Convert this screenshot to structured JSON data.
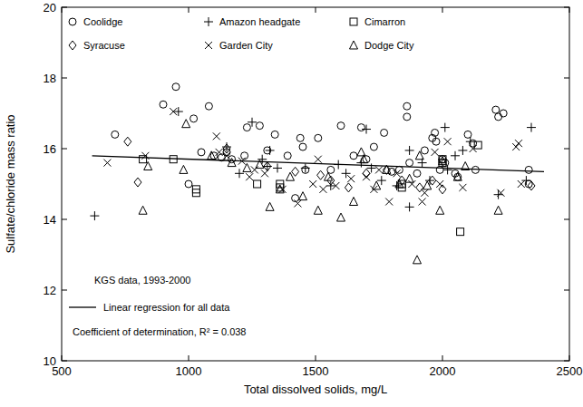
{
  "chart_data": {
    "type": "scatter",
    "x_label": "Total dissolved solids, mg/L",
    "y_label": "Sulfate/chloride mass ratio",
    "xlim": [
      500,
      2500
    ],
    "xticks": [
      500,
      1000,
      1500,
      2000,
      2500
    ],
    "ylim": [
      10,
      20
    ],
    "yticks": [
      10,
      12,
      14,
      16,
      18,
      20
    ],
    "grid": false,
    "legend": "top",
    "annotations": [
      "KGS data, 1993-2000",
      "Coefficient of determination, R² = 0.038"
    ],
    "series": [
      {
        "name": "Coolidge",
        "color": "#000000",
        "marker": "circle",
        "x": [
          710,
          900,
          950,
          1000,
          1020,
          1050,
          1080,
          1100,
          1130,
          1150,
          1170,
          1220,
          1230,
          1280,
          1310,
          1340,
          1390,
          1420,
          1440,
          1450,
          1460,
          1510,
          1560,
          1600,
          1650,
          1680,
          1700,
          1730,
          1770,
          1800,
          1830,
          1860,
          1860,
          1870,
          1900,
          1930,
          1960,
          1970,
          1975,
          1990,
          2000,
          2010,
          2060,
          2100,
          2120,
          2210,
          2220,
          2240,
          2340,
          2340,
          2130,
          2050
        ],
        "values": [
          16.4,
          17.25,
          17.75,
          15.0,
          16.85,
          15.9,
          17.2,
          15.8,
          15.75,
          15.9,
          15.7,
          15.8,
          16.6,
          16.65,
          15.95,
          16.4,
          15.8,
          14.6,
          16.3,
          16.05,
          15.4,
          16.3,
          15.4,
          16.65,
          15.8,
          16.6,
          15.7,
          16.05,
          16.45,
          15.35,
          15.4,
          16.9,
          17.2,
          15.6,
          15.3,
          15.95,
          16.3,
          16.45,
          16.2,
          15.4,
          15.7,
          15.6,
          15.2,
          16.4,
          16.15,
          17.1,
          16.9,
          17.0,
          15.4,
          15.0,
          15.4,
          15.3
        ]
      },
      {
        "name": "Amazon headgate",
        "color": "#000000",
        "marker": "plus",
        "x": [
          630,
          960,
          1150,
          1200,
          1250,
          1290,
          1310,
          1320,
          1350,
          1460,
          1560,
          1590,
          1620,
          1680,
          1700,
          1720,
          1760,
          1820,
          1870,
          1870,
          1920,
          1950,
          2010,
          2020,
          2050,
          2080,
          2110,
          2220,
          2350,
          2330
        ],
        "values": [
          14.1,
          17.05,
          16.05,
          15.3,
          16.75,
          15.7,
          15.5,
          15.95,
          15.45,
          15.45,
          14.95,
          15.55,
          15.3,
          15.6,
          16.55,
          15.45,
          15.1,
          14.95,
          15.95,
          14.35,
          15.6,
          15.1,
          16.6,
          15.4,
          15.8,
          15.95,
          16.2,
          14.7,
          16.6,
          15.1
        ]
      },
      {
        "name": "Cimarron",
        "color": "#000000",
        "marker": "square",
        "x": [
          820,
          940,
          1030,
          1030,
          1270,
          1360,
          1360,
          1840,
          1840,
          2000,
          2000,
          2070,
          2140
        ],
        "values": [
          15.7,
          15.7,
          14.85,
          14.75,
          15.0,
          15.0,
          14.9,
          15.0,
          14.9,
          15.7,
          15.6,
          13.65,
          16.1
        ]
      },
      {
        "name": "Syracuse",
        "color": "#000000",
        "marker": "diamond",
        "x": [
          760,
          800,
          1150,
          1310,
          1420,
          1520,
          1560,
          1630,
          1700,
          1780,
          1840,
          1910,
          1960,
          2000,
          2350
        ],
        "values": [
          16.2,
          15.05,
          16.0,
          15.5,
          15.35,
          15.25,
          15.1,
          14.9,
          15.3,
          15.4,
          15.1,
          14.9,
          15.1,
          14.85,
          14.95
        ]
      },
      {
        "name": "Garden City",
        "color": "#000000",
        "marker": "x",
        "x": [
          680,
          830,
          940,
          1110,
          1120,
          1150,
          1210,
          1240,
          1260,
          1300,
          1370,
          1430,
          1490,
          1510,
          1530,
          1580,
          1640,
          1700,
          1730,
          1750,
          1790,
          1820,
          1880,
          1920,
          1930,
          1970,
          1990,
          2020,
          2080,
          2120,
          2230,
          2290,
          2300,
          2310
        ],
        "values": [
          15.6,
          15.8,
          17.05,
          16.35,
          15.9,
          15.8,
          15.65,
          15.2,
          15.4,
          15.3,
          14.85,
          14.45,
          15.0,
          15.7,
          14.85,
          14.95,
          15.15,
          15.2,
          14.85,
          15.4,
          14.5,
          15.3,
          15.0,
          14.5,
          14.75,
          15.9,
          15.0,
          16.2,
          14.9,
          16.0,
          14.75,
          16.05,
          16.15,
          15.0
        ]
      },
      {
        "name": "Dodge City",
        "color": "#000000",
        "marker": "triangle",
        "x": [
          820,
          840,
          980,
          990,
          1090,
          1170,
          1230,
          1280,
          1320,
          1360,
          1400,
          1450,
          1510,
          1550,
          1600,
          1650,
          1680,
          1690,
          1740,
          1780,
          1830,
          1870,
          1900,
          1910,
          1940,
          1990,
          2060,
          2090,
          2220,
          2000
        ],
        "values": [
          14.25,
          15.5,
          15.4,
          16.7,
          15.8,
          15.6,
          15.45,
          15.55,
          14.35,
          14.85,
          15.2,
          14.65,
          14.25,
          15.2,
          14.05,
          14.5,
          15.9,
          15.7,
          14.95,
          15.4,
          15.0,
          15.15,
          12.85,
          15.8,
          14.95,
          14.25,
          15.2,
          15.5,
          14.25,
          15.65
        ]
      },
      {
        "name": "Linear regression for all data",
        "color": "#000000",
        "type": "line",
        "line_style": "solid",
        "x": [
          620,
          2400
        ],
        "values": [
          15.8,
          15.35
        ]
      }
    ]
  }
}
